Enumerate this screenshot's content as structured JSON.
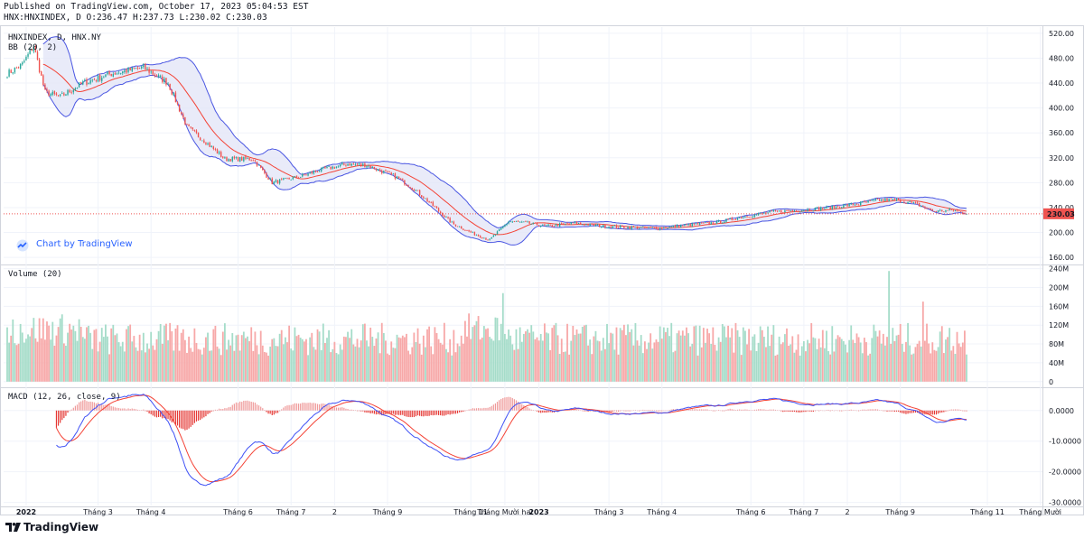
{
  "header": {
    "published": "Published on TradingView.com, October 17, 2023 05:04:53 EST",
    "ohlc": "HNX:HNXINDEX, D O:236.47 H:237.73 L:230.02 C:230.03"
  },
  "legend": {
    "symbol": "HNXINDEX, D, HNX.NY",
    "bb": "BB (20, 2)",
    "volume": "Volume (20)",
    "macd": "MACD (12, 26, close, 9)"
  },
  "credit": "Chart by TradingView",
  "brand": "TradingView",
  "last_price_label": "230.03",
  "colors": {
    "up": "#26a69a",
    "down": "#ef5350",
    "bb_fill": "#e3e6f7",
    "bb_band": "#4a56e2",
    "basis": "#f44336",
    "macd": "#3f51f5",
    "signal": "#f44336"
  },
  "chart_data": [
    {
      "type": "candlestick",
      "title": "HNXINDEX, D, HNX.NY",
      "ylim": [
        150,
        530
      ],
      "yticks": [
        "520.00",
        "480.00",
        "440.00",
        "400.00",
        "360.00",
        "320.00",
        "280.00",
        "240.00",
        "200.00",
        "160.00"
      ],
      "ytick_values": [
        520,
        480,
        440,
        400,
        360,
        320,
        280,
        240,
        200,
        160
      ],
      "xticks": [
        "2022",
        "Tháng 3",
        "Tháng 4",
        "Tháng 6",
        "Tháng 7",
        "2",
        "Tháng 9",
        "Tháng 11",
        "Tháng Mười hai",
        "2023",
        "Tháng 3",
        "Tháng 4",
        "Tháng 6",
        "Tháng 7",
        "2",
        "Tháng 9",
        "Tháng 11",
        "Tháng Mười"
      ],
      "xtick_index": [
        10,
        48,
        76,
        122,
        150,
        173,
        201,
        245,
        263,
        281,
        318,
        346,
        393,
        421,
        444,
        472,
        518,
        546
      ],
      "price_knots": [
        [
          0,
          455
        ],
        [
          8,
          470
        ],
        [
          14,
          500
        ],
        [
          20,
          425
        ],
        [
          28,
          418
        ],
        [
          40,
          440
        ],
        [
          55,
          455
        ],
        [
          72,
          465
        ],
        [
          85,
          440
        ],
        [
          95,
          370
        ],
        [
          105,
          345
        ],
        [
          115,
          318
        ],
        [
          130,
          318
        ],
        [
          140,
          280
        ],
        [
          155,
          290
        ],
        [
          165,
          300
        ],
        [
          180,
          310
        ],
        [
          190,
          308
        ],
        [
          205,
          290
        ],
        [
          215,
          270
        ],
        [
          225,
          243
        ],
        [
          235,
          215
        ],
        [
          245,
          200
        ],
        [
          255,
          188
        ],
        [
          265,
          218
        ],
        [
          275,
          215
        ],
        [
          285,
          210
        ],
        [
          300,
          215
        ],
        [
          315,
          210
        ],
        [
          330,
          208
        ],
        [
          345,
          207
        ],
        [
          360,
          212
        ],
        [
          375,
          216
        ],
        [
          390,
          226
        ],
        [
          405,
          233
        ],
        [
          420,
          236
        ],
        [
          435,
          240
        ],
        [
          450,
          246
        ],
        [
          460,
          252
        ],
        [
          470,
          252
        ],
        [
          480,
          246
        ],
        [
          490,
          234
        ],
        [
          500,
          236
        ],
        [
          507,
          230
        ]
      ],
      "last_close": 230.03
    },
    {
      "type": "bar",
      "title": "Volume (20)",
      "ylim": [
        -10,
        245
      ],
      "yticks": [
        "240M",
        "200M",
        "160M",
        "120M",
        "80M",
        "40M",
        "0"
      ],
      "ytick_values": [
        240,
        200,
        160,
        120,
        80,
        40,
        0
      ],
      "units": "M"
    },
    {
      "type": "line",
      "title": "MACD (12, 26, close, 9)",
      "ylim": [
        -31,
        7
      ],
      "yticks": [
        "0.0000",
        "-10.0000",
        "-20.0000",
        "-30.0000"
      ],
      "ytick_values": [
        0,
        -10,
        -20,
        -30
      ],
      "series": [
        {
          "key": "macd"
        },
        {
          "key": "signal"
        },
        {
          "key": "histogram"
        }
      ]
    }
  ]
}
